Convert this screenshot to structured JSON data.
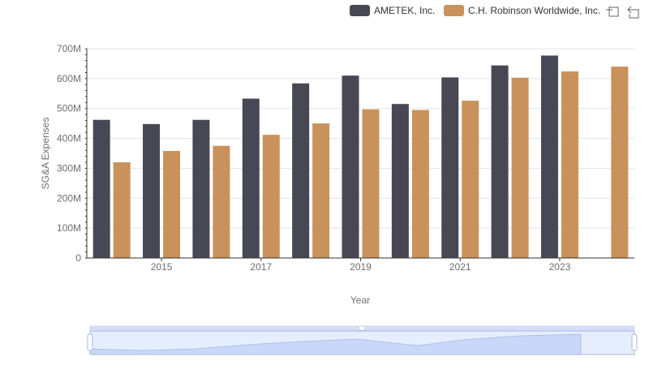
{
  "chart_data": {
    "type": "bar",
    "xlabel": "Year",
    "ylabel": "SG&A Expenses",
    "ylim": [
      0,
      700000000
    ],
    "y_ticks": [
      "0",
      "100M",
      "200M",
      "300M",
      "400M",
      "500M",
      "600M",
      "700M"
    ],
    "x_tick_labels": [
      "2015",
      "2017",
      "2019",
      "2021",
      "2023"
    ],
    "grid": true,
    "legend_position": "top-right",
    "categories": [
      "2014",
      "2015",
      "2016",
      "2017",
      "2018",
      "2019",
      "2020",
      "2021",
      "2022",
      "2023",
      "2024"
    ],
    "series": [
      {
        "name": "AMETEK, Inc.",
        "color": "#484854",
        "values": [
          462000000,
          448000000,
          462000000,
          533000000,
          584000000,
          610000000,
          515000000,
          604000000,
          644000000,
          677000000,
          null
        ]
      },
      {
        "name": "C.H. Robinson Worldwide, Inc.",
        "color": "#c9925c",
        "values": [
          320000000,
          358000000,
          375000000,
          412000000,
          450000000,
          497000000,
          495000000,
          526000000,
          603000000,
          624000000,
          640000000
        ]
      }
    ]
  },
  "toolbar": {
    "zoom_icon": "zoom-icon",
    "reset_icon": "reset-icon"
  },
  "data_zoom": {
    "handle_color": "#a7b7e0",
    "fill_color": "#d3ddf7"
  }
}
